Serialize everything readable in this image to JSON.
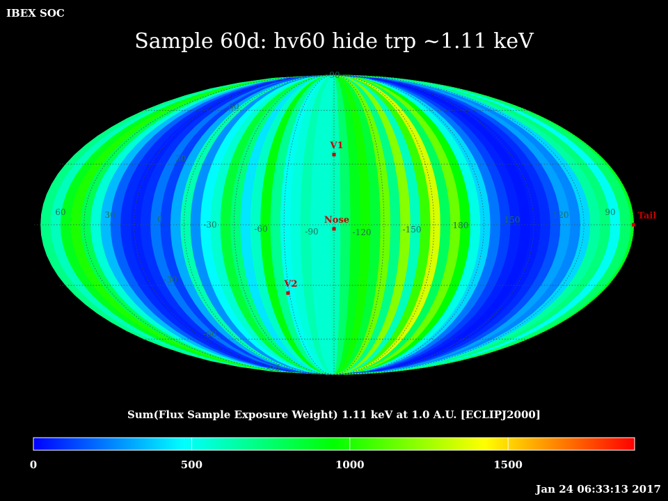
{
  "header": {
    "org_label": "IBEX SOC",
    "title": "Sample 60d: hv60 hide trp ~1.11 keV",
    "timestamp": "Jan 24 06:33:13 2017"
  },
  "colors": {
    "background": "#000000",
    "graticule": "#2f4f4f",
    "grid_label": "#1e6e5a",
    "marker": "#c80000",
    "colormap": [
      "#0000ff",
      "#00ffff",
      "#00ff00",
      "#ffff00",
      "#ff0000"
    ]
  },
  "chart_data": {
    "type": "heatmap",
    "projection": "mollweide",
    "frame": "ECLIPJ2000",
    "center_longitude": -105,
    "colorbar": {
      "label": "Sum(Flux Sample Exposure Weight)  1.11 keV at 1.0 A.U. [ECLIPJ2000]",
      "range": [
        0,
        1900
      ],
      "ticks": [
        "0",
        "500",
        "1000",
        "1500"
      ]
    },
    "longitude_labels": [
      "60",
      "30",
      "0",
      "-30",
      "-60",
      "-90",
      "-120",
      "-150",
      "180",
      "150",
      "120",
      "90"
    ],
    "latitude_labels": [
      "90",
      "60",
      "30",
      "-30",
      "-60",
      "-90"
    ],
    "markers": [
      {
        "label": "V1",
        "lon": -105,
        "lat": 35
      },
      {
        "label": "Nose",
        "lon": -105,
        "lat": -2
      },
      {
        "label": "V2",
        "lon": -74,
        "lat": -34
      },
      {
        "label": "Tail",
        "lon": 75,
        "lat": 0
      }
    ],
    "swaths": [
      {
        "lon": 74,
        "value": 900
      },
      {
        "lon": 68,
        "value": 700
      },
      {
        "lon": 62,
        "value": 600
      },
      {
        "lon": 56,
        "value": 900
      },
      {
        "lon": 50,
        "value": 1000
      },
      {
        "lon": 44,
        "value": 800
      },
      {
        "lon": 38,
        "value": 550
      },
      {
        "lon": 32,
        "value": 350
      },
      {
        "lon": 26,
        "value": 180
      },
      {
        "lon": 20,
        "value": 80
      },
      {
        "lon": 14,
        "value": 60
      },
      {
        "lon": 8,
        "value": 90
      },
      {
        "lon": 2,
        "value": 220
      },
      {
        "lon": -4,
        "value": 120
      },
      {
        "lon": -10,
        "value": 320
      },
      {
        "lon": -16,
        "value": 620
      },
      {
        "lon": -22,
        "value": 270
      },
      {
        "lon": -28,
        "value": 470
      },
      {
        "lon": -34,
        "value": 560
      },
      {
        "lon": -40,
        "value": 850
      },
      {
        "lon": -46,
        "value": 720
      },
      {
        "lon": -52,
        "value": 430
      },
      {
        "lon": -58,
        "value": 580
      },
      {
        "lon": -64,
        "value": 930
      },
      {
        "lon": -70,
        "value": 680
      },
      {
        "lon": -76,
        "value": 500
      },
      {
        "lon": -82,
        "value": 540
      },
      {
        "lon": -88,
        "value": 620
      },
      {
        "lon": -94,
        "value": 560
      },
      {
        "lon": -100,
        "value": 560
      },
      {
        "lon": -106,
        "value": 600
      },
      {
        "lon": -112,
        "value": 750
      },
      {
        "lon": -118,
        "value": 900
      },
      {
        "lon": -124,
        "value": 980
      },
      {
        "lon": -130,
        "value": 850
      },
      {
        "lon": -136,
        "value": 1150
      },
      {
        "lon": -142,
        "value": 700
      },
      {
        "lon": -148,
        "value": 1200
      },
      {
        "lon": -154,
        "value": 600
      },
      {
        "lon": -160,
        "value": 1050
      },
      {
        "lon": -166,
        "value": 1350
      },
      {
        "lon": -172,
        "value": 780
      },
      {
        "lon": -178,
        "value": 1150
      },
      {
        "lon": 176,
        "value": 950
      },
      {
        "lon": 170,
        "value": 520
      },
      {
        "lon": 164,
        "value": 400
      },
      {
        "lon": 158,
        "value": 220
      },
      {
        "lon": 152,
        "value": 120
      },
      {
        "lon": 146,
        "value": 60
      },
      {
        "lon": 140,
        "value": 40
      },
      {
        "lon": 134,
        "value": 50
      },
      {
        "lon": 128,
        "value": 80
      },
      {
        "lon": 122,
        "value": 150
      },
      {
        "lon": 116,
        "value": 300
      },
      {
        "lon": 110,
        "value": 250
      },
      {
        "lon": 104,
        "value": 400
      },
      {
        "lon": 98,
        "value": 650
      },
      {
        "lon": 92,
        "value": 720
      },
      {
        "lon": 86,
        "value": 500
      },
      {
        "lon": 80,
        "value": 750
      }
    ]
  }
}
